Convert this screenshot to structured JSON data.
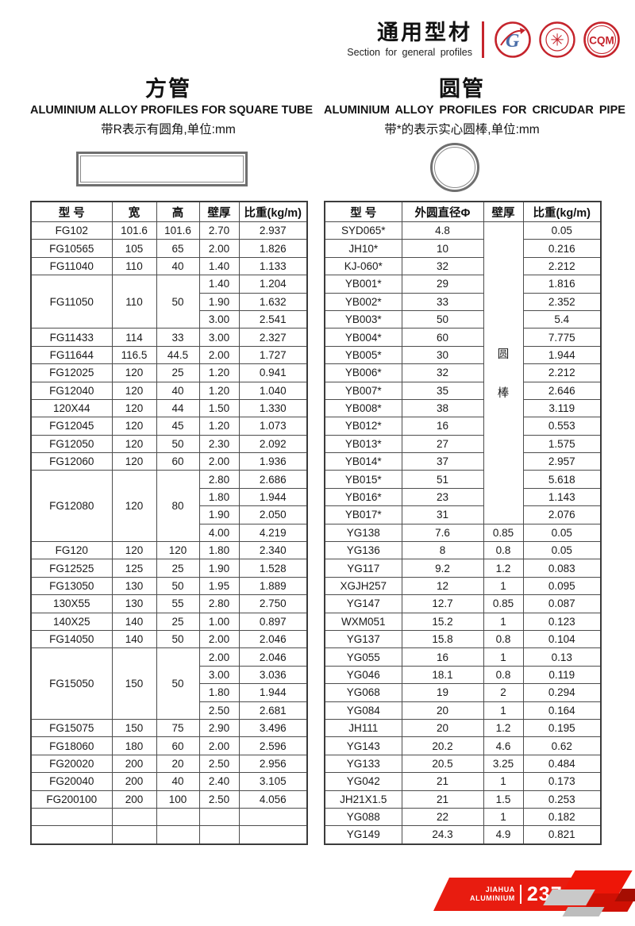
{
  "header": {
    "title_cn": "通用型材",
    "title_en": "Section for general profiles",
    "gb_letter": "G",
    "seal_glyph": "✳",
    "cqm_text": "CQM"
  },
  "left_section": {
    "title_cn": "方管",
    "title_en": "ALUMINIUM ALLOY PROFILES FOR SQUARE TUBE",
    "note": "带R表示有圆角,单位:mm",
    "table": {
      "headers": [
        "型 号",
        "宽",
        "高",
        "壁厚",
        "比重(kg/m)"
      ],
      "rows": [
        {
          "model": "FG102",
          "w": "101.6",
          "h": "101.6",
          "subs": [
            [
              "2.70",
              "2.937"
            ]
          ]
        },
        {
          "model": "FG10565",
          "w": "105",
          "h": "65",
          "subs": [
            [
              "2.00",
              "1.826"
            ]
          ]
        },
        {
          "model": "FG11040",
          "w": "110",
          "h": "40",
          "subs": [
            [
              "1.40",
              "1.133"
            ]
          ]
        },
        {
          "model": "FG11050",
          "w": "110",
          "h": "50",
          "subs": [
            [
              "1.40",
              "1.204"
            ],
            [
              "1.90",
              "1.632"
            ],
            [
              "3.00",
              "2.541"
            ]
          ]
        },
        {
          "model": "FG11433",
          "w": "114",
          "h": "33",
          "subs": [
            [
              "3.00",
              "2.327"
            ]
          ]
        },
        {
          "model": "FG11644",
          "w": "116.5",
          "h": "44.5",
          "subs": [
            [
              "2.00",
              "1.727"
            ]
          ]
        },
        {
          "model": "FG12025",
          "w": "120",
          "h": "25",
          "subs": [
            [
              "1.20",
              "0.941"
            ]
          ]
        },
        {
          "model": "FG12040",
          "w": "120",
          "h": "40",
          "subs": [
            [
              "1.20",
              "1.040"
            ]
          ]
        },
        {
          "model": "120X44",
          "w": "120",
          "h": "44",
          "subs": [
            [
              "1.50",
              "1.330"
            ]
          ]
        },
        {
          "model": "FG12045",
          "w": "120",
          "h": "45",
          "subs": [
            [
              "1.20",
              "1.073"
            ]
          ]
        },
        {
          "model": "FG12050",
          "w": "120",
          "h": "50",
          "subs": [
            [
              "2.30",
              "2.092"
            ]
          ]
        },
        {
          "model": "FG12060",
          "w": "120",
          "h": "60",
          "subs": [
            [
              "2.00",
              "1.936"
            ]
          ]
        },
        {
          "model": "FG12080",
          "w": "120",
          "h": "80",
          "subs": [
            [
              "2.80",
              "2.686"
            ],
            [
              "1.80",
              "1.944"
            ],
            [
              "1.90",
              "2.050"
            ],
            [
              "4.00",
              "4.219"
            ]
          ]
        },
        {
          "model": "FG120",
          "w": "120",
          "h": "120",
          "subs": [
            [
              "1.80",
              "2.340"
            ]
          ]
        },
        {
          "model": "FG12525",
          "w": "125",
          "h": "25",
          "subs": [
            [
              "1.90",
              "1.528"
            ]
          ]
        },
        {
          "model": "FG13050",
          "w": "130",
          "h": "50",
          "subs": [
            [
              "1.95",
              "1.889"
            ]
          ]
        },
        {
          "model": "130X55",
          "w": "130",
          "h": "55",
          "subs": [
            [
              "2.80",
              "2.750"
            ]
          ]
        },
        {
          "model": "140X25",
          "w": "140",
          "h": "25",
          "subs": [
            [
              "1.00",
              "0.897"
            ]
          ]
        },
        {
          "model": "FG14050",
          "w": "140",
          "h": "50",
          "subs": [
            [
              "2.00",
              "2.046"
            ]
          ]
        },
        {
          "model": "FG15050",
          "w": "150",
          "h": "50",
          "subs": [
            [
              "2.00",
              "2.046"
            ],
            [
              "3.00",
              "3.036"
            ],
            [
              "1.80",
              "1.944"
            ],
            [
              "2.50",
              "2.681"
            ]
          ]
        },
        {
          "model": "FG15075",
          "w": "150",
          "h": "75",
          "subs": [
            [
              "2.90",
              "3.496"
            ]
          ]
        },
        {
          "model": "FG18060",
          "w": "180",
          "h": "60",
          "subs": [
            [
              "2.00",
              "2.596"
            ]
          ]
        },
        {
          "model": "FG20020",
          "w": "200",
          "h": "20",
          "subs": [
            [
              "2.50",
              "2.956"
            ]
          ]
        },
        {
          "model": "FG20040",
          "w": "200",
          "h": "40",
          "subs": [
            [
              "2.40",
              "3.105"
            ]
          ]
        },
        {
          "model": "FG200100",
          "w": "200",
          "h": "100",
          "subs": [
            [
              "2.50",
              "4.056"
            ]
          ]
        },
        {
          "model": "",
          "w": "",
          "h": "",
          "subs": [
            [
              "",
              ""
            ]
          ]
        },
        {
          "model": "",
          "w": "",
          "h": "",
          "subs": [
            [
              "",
              ""
            ]
          ]
        }
      ]
    }
  },
  "right_section": {
    "title_cn": "圆管",
    "title_en": "ALUMINIUM ALLOY PROFILES FOR CRICUDAR PIPE",
    "note": "带*的表示实心圆棒,单位:mm",
    "table": {
      "headers": [
        "型 号",
        "外圆直径Φ",
        "壁厚",
        "比重(kg/m)"
      ],
      "merged_thickness_label": "圆棒",
      "merged_rows": 17,
      "rows": [
        {
          "model": "SYD065*",
          "dia": "4.8",
          "thick": "",
          "weight": "0.05"
        },
        {
          "model": "JH10*",
          "dia": "10",
          "thick": "",
          "weight": "0.216"
        },
        {
          "model": "KJ-060*",
          "dia": "32",
          "thick": "",
          "weight": "2.212"
        },
        {
          "model": "YB001*",
          "dia": "29",
          "thick": "",
          "weight": "1.816"
        },
        {
          "model": "YB002*",
          "dia": "33",
          "thick": "",
          "weight": "2.352"
        },
        {
          "model": "YB003*",
          "dia": "50",
          "thick": "",
          "weight": "5.4"
        },
        {
          "model": "YB004*",
          "dia": "60",
          "thick": "",
          "weight": "7.775"
        },
        {
          "model": "YB005*",
          "dia": "30",
          "thick": "",
          "weight": "1.944"
        },
        {
          "model": "YB006*",
          "dia": "32",
          "thick": "",
          "weight": "2.212"
        },
        {
          "model": "YB007*",
          "dia": "35",
          "thick": "",
          "weight": "2.646"
        },
        {
          "model": "YB008*",
          "dia": "38",
          "thick": "",
          "weight": "3.119"
        },
        {
          "model": "YB012*",
          "dia": "16",
          "thick": "",
          "weight": "0.553"
        },
        {
          "model": "YB013*",
          "dia": "27",
          "thick": "",
          "weight": "1.575"
        },
        {
          "model": "YB014*",
          "dia": "37",
          "thick": "",
          "weight": "2.957"
        },
        {
          "model": "YB015*",
          "dia": "51",
          "thick": "",
          "weight": "5.618"
        },
        {
          "model": "YB016*",
          "dia": "23",
          "thick": "",
          "weight": "1.143"
        },
        {
          "model": "YB017*",
          "dia": "31",
          "thick": "",
          "weight": "2.076"
        },
        {
          "model": "YG138",
          "dia": "7.6",
          "thick": "0.85",
          "weight": "0.05"
        },
        {
          "model": "YG136",
          "dia": "8",
          "thick": "0.8",
          "weight": "0.05"
        },
        {
          "model": "YG117",
          "dia": "9.2",
          "thick": "1.2",
          "weight": "0.083"
        },
        {
          "model": "XGJH257",
          "dia": "12",
          "thick": "1",
          "weight": "0.095"
        },
        {
          "model": "YG147",
          "dia": "12.7",
          "thick": "0.85",
          "weight": "0.087"
        },
        {
          "model": "WXM051",
          "dia": "15.2",
          "thick": "1",
          "weight": "0.123"
        },
        {
          "model": "YG137",
          "dia": "15.8",
          "thick": "0.8",
          "weight": "0.104"
        },
        {
          "model": "YG055",
          "dia": "16",
          "thick": "1",
          "weight": "0.13"
        },
        {
          "model": "YG046",
          "dia": "18.1",
          "thick": "0.8",
          "weight": "0.119"
        },
        {
          "model": "YG068",
          "dia": "19",
          "thick": "2",
          "weight": "0.294"
        },
        {
          "model": "YG084",
          "dia": "20",
          "thick": "1",
          "weight": "0.164"
        },
        {
          "model": "JH111",
          "dia": "20",
          "thick": "1.2",
          "weight": "0.195"
        },
        {
          "model": "YG143",
          "dia": "20.2",
          "thick": "4.6",
          "weight": "0.62"
        },
        {
          "model": "YG133",
          "dia": "20.5",
          "thick": "3.25",
          "weight": "0.484"
        },
        {
          "model": "YG042",
          "dia": "21",
          "thick": "1",
          "weight": "0.173"
        },
        {
          "model": "JH21X1.5",
          "dia": "21",
          "thick": "1.5",
          "weight": "0.253"
        },
        {
          "model": "YG088",
          "dia": "22",
          "thick": "1",
          "weight": "0.182"
        },
        {
          "model": "YG149",
          "dia": "24.3",
          "thick": "4.9",
          "weight": "0.821"
        }
      ]
    }
  },
  "footer": {
    "brand_line1": "JIAHUA",
    "brand_line2": "ALUMINIUM",
    "page_number": "237"
  },
  "colors": {
    "accent_red": "#c5242c",
    "footer_red": "#e81c10",
    "table_border": "#4d4d4d"
  }
}
